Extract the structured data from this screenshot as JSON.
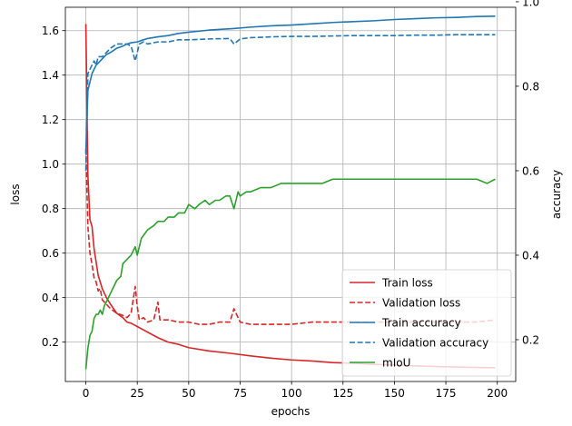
{
  "chart_data": {
    "type": "line",
    "xlabel": "epochs",
    "ylabel_left": "loss",
    "ylabel_right": "accuracy",
    "xlim": [
      -9.95,
      208.95
    ],
    "ylim_left": [
      0.023,
      1.705
    ],
    "ylim_right": [
      0.101,
      0.987
    ],
    "xticks": [
      0,
      25,
      50,
      75,
      100,
      125,
      150,
      175,
      200
    ],
    "yticks_left": [
      0.2,
      0.4,
      0.6,
      0.8,
      1.0,
      1.2,
      1.4,
      1.6
    ],
    "yticks_right": [
      0.2,
      0.4,
      0.6,
      0.8,
      1.0
    ],
    "xtick_labels": [
      "0",
      "25",
      "50",
      "75",
      "100",
      "125",
      "150",
      "175",
      "200"
    ],
    "yticks_left_labels": [
      "0.2",
      "0.4",
      "0.6",
      "0.8",
      "1.0",
      "1.2",
      "1.4",
      "1.6"
    ],
    "yticks_right_labels": [
      "0.2",
      "0.4",
      "0.6",
      "0.8",
      "1.0"
    ],
    "grid": true,
    "legend_position": "lower-right",
    "series": [
      {
        "name": "Train loss",
        "axis": "left",
        "color": "#d62728",
        "dash": "solid",
        "x": [
          0,
          1,
          2,
          3,
          4,
          5,
          6,
          8,
          10,
          12,
          15,
          18,
          20,
          22,
          24,
          25,
          28,
          30,
          35,
          40,
          45,
          50,
          60,
          70,
          80,
          90,
          100,
          110,
          120,
          130,
          140,
          150,
          160,
          170,
          180,
          190,
          199
        ],
        "y": [
          1.63,
          0.95,
          0.75,
          0.72,
          0.62,
          0.56,
          0.5,
          0.44,
          0.4,
          0.37,
          0.33,
          0.31,
          0.29,
          0.285,
          0.275,
          0.27,
          0.255,
          0.245,
          0.22,
          0.2,
          0.19,
          0.175,
          0.16,
          0.15,
          0.138,
          0.128,
          0.12,
          0.115,
          0.108,
          0.105,
          0.1,
          0.097,
          0.093,
          0.09,
          0.088,
          0.086,
          0.085
        ]
      },
      {
        "name": "Validation loss",
        "axis": "left",
        "color": "#d62728",
        "dash": "dashed",
        "x": [
          0,
          1,
          2,
          3,
          4,
          5,
          6,
          7,
          8,
          10,
          12,
          15,
          18,
          20,
          22,
          24,
          25,
          26,
          28,
          30,
          33,
          35,
          36,
          40,
          45,
          50,
          55,
          60,
          65,
          70,
          72,
          75,
          80,
          90,
          100,
          110,
          120,
          130,
          140,
          150,
          160,
          170,
          180,
          190,
          199
        ],
        "y": [
          1.07,
          0.72,
          0.6,
          0.55,
          0.49,
          0.47,
          0.43,
          0.44,
          0.39,
          0.37,
          0.35,
          0.33,
          0.32,
          0.31,
          0.33,
          0.45,
          0.36,
          0.3,
          0.31,
          0.29,
          0.3,
          0.38,
          0.3,
          0.3,
          0.29,
          0.29,
          0.28,
          0.28,
          0.29,
          0.29,
          0.35,
          0.29,
          0.28,
          0.28,
          0.28,
          0.29,
          0.29,
          0.29,
          0.29,
          0.29,
          0.29,
          0.29,
          0.29,
          0.29,
          0.3
        ]
      },
      {
        "name": "Train accuracy",
        "axis": "right",
        "color": "#1f77b4",
        "dash": "solid",
        "x": [
          0,
          1,
          2,
          3,
          4,
          5,
          6,
          8,
          10,
          12,
          15,
          18,
          20,
          22,
          25,
          28,
          30,
          35,
          40,
          45,
          50,
          60,
          70,
          80,
          90,
          100,
          110,
          120,
          130,
          140,
          150,
          160,
          170,
          180,
          190,
          199
        ],
        "y": [
          0.64,
          0.79,
          0.81,
          0.83,
          0.84,
          0.85,
          0.855,
          0.865,
          0.875,
          0.88,
          0.89,
          0.895,
          0.9,
          0.903,
          0.905,
          0.91,
          0.913,
          0.917,
          0.92,
          0.925,
          0.928,
          0.933,
          0.936,
          0.94,
          0.943,
          0.945,
          0.948,
          0.951,
          0.953,
          0.955,
          0.958,
          0.96,
          0.962,
          0.963,
          0.965,
          0.966
        ]
      },
      {
        "name": "Validation accuracy",
        "axis": "right",
        "color": "#1f77b4",
        "dash": "dashed",
        "x": [
          0,
          1,
          2,
          3,
          4,
          5,
          6,
          8,
          10,
          12,
          15,
          18,
          20,
          22,
          24,
          25,
          26,
          28,
          30,
          35,
          40,
          45,
          50,
          60,
          70,
          72,
          75,
          80,
          90,
          100,
          110,
          120,
          130,
          140,
          150,
          160,
          170,
          180,
          190,
          199
        ],
        "y": [
          0.6,
          0.83,
          0.84,
          0.85,
          0.86,
          0.85,
          0.87,
          0.87,
          0.88,
          0.89,
          0.9,
          0.9,
          0.9,
          0.895,
          0.86,
          0.88,
          0.9,
          0.905,
          0.9,
          0.905,
          0.905,
          0.91,
          0.91,
          0.912,
          0.913,
          0.9,
          0.912,
          0.915,
          0.917,
          0.918,
          0.918,
          0.919,
          0.92,
          0.92,
          0.92,
          0.921,
          0.921,
          0.922,
          0.922,
          0.922
        ]
      },
      {
        "name": "mIoU",
        "axis": "right",
        "color": "#2ca02c",
        "dash": "solid",
        "x": [
          0,
          1,
          2,
          3,
          4,
          5,
          6,
          7,
          8,
          9,
          10,
          12,
          14,
          15,
          17,
          18,
          20,
          22,
          24,
          25,
          27,
          30,
          33,
          35,
          38,
          40,
          43,
          45,
          48,
          50,
          53,
          55,
          58,
          60,
          63,
          65,
          68,
          70,
          72,
          74,
          75,
          78,
          80,
          85,
          90,
          95,
          100,
          105,
          110,
          115,
          120,
          125,
          130,
          135,
          140,
          145,
          150,
          155,
          160,
          165,
          170,
          175,
          180,
          185,
          190,
          195,
          199
        ],
        "y": [
          0.13,
          0.18,
          0.21,
          0.22,
          0.25,
          0.26,
          0.26,
          0.27,
          0.26,
          0.28,
          0.29,
          0.31,
          0.33,
          0.34,
          0.35,
          0.38,
          0.39,
          0.4,
          0.42,
          0.4,
          0.44,
          0.46,
          0.47,
          0.48,
          0.48,
          0.49,
          0.49,
          0.5,
          0.5,
          0.52,
          0.51,
          0.52,
          0.53,
          0.52,
          0.53,
          0.53,
          0.54,
          0.54,
          0.51,
          0.55,
          0.54,
          0.55,
          0.55,
          0.56,
          0.56,
          0.57,
          0.57,
          0.57,
          0.57,
          0.57,
          0.58,
          0.58,
          0.58,
          0.58,
          0.58,
          0.58,
          0.58,
          0.58,
          0.58,
          0.58,
          0.58,
          0.58,
          0.58,
          0.58,
          0.58,
          0.57,
          0.58
        ]
      }
    ]
  }
}
